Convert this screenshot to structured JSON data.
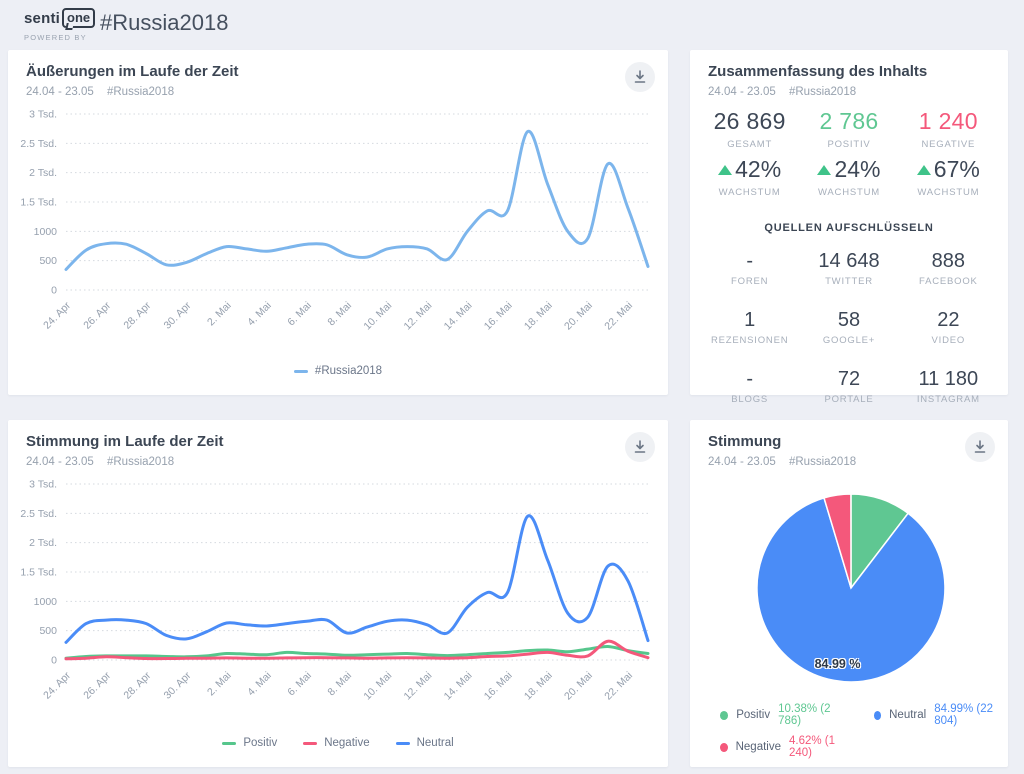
{
  "header": {
    "logo_senti": "senti",
    "logo_one": "one",
    "powered_by": "POWERED BY",
    "title": "#Russia2018"
  },
  "panels": {
    "mentions": {
      "title": "Äußerungen im Laufe der Zeit",
      "date_range": "24.04 - 23.05",
      "hashtag": "#Russia2018",
      "legend": [
        {
          "label": "#Russia2018",
          "color": "#7cb5ec"
        }
      ]
    },
    "summary": {
      "title": "Zusammenfassung des Inhalts",
      "date_range": "24.04 - 23.05",
      "hashtag": "#Russia2018",
      "stats": [
        {
          "value": "26 869",
          "label": "GESAMT",
          "color": "#3d4756"
        },
        {
          "value": "2 786",
          "label": "POSITIV",
          "color": "#5fc792"
        },
        {
          "value": "1 240",
          "label": "NEGATIVE",
          "color": "#f4587b"
        }
      ],
      "growth": [
        {
          "value": "42%",
          "label": "WACHSTUM"
        },
        {
          "value": "24%",
          "label": "WACHSTUM"
        },
        {
          "value": "67%",
          "label": "WACHSTUM"
        }
      ],
      "sources_title": "QUELLEN AUFSCHLÜSSELN",
      "sources": [
        {
          "value": "-",
          "label": "FOREN"
        },
        {
          "value": "14 648",
          "label": "TWITTER"
        },
        {
          "value": "888",
          "label": "FACEBOOK"
        },
        {
          "value": "1",
          "label": "REZENSIONEN"
        },
        {
          "value": "58",
          "label": "GOOGLE+"
        },
        {
          "value": "22",
          "label": "VIDEO"
        },
        {
          "value": "-",
          "label": "BLOGS"
        },
        {
          "value": "72",
          "label": "PORTALE"
        },
        {
          "value": "11 180",
          "label": "INSTAGRAM"
        }
      ]
    },
    "sentiment_time": {
      "title": "Stimmung im Laufe der Zeit",
      "date_range": "24.04 - 23.05",
      "hashtag": "#Russia2018",
      "legend": [
        {
          "label": "Positiv",
          "color": "#56c68c"
        },
        {
          "label": "Negative",
          "color": "#f4587b"
        },
        {
          "label": "Neutral",
          "color": "#4a8cf7"
        }
      ]
    },
    "sentiment_pie": {
      "title": "Stimmung",
      "date_range": "24.04 - 23.05",
      "hashtag": "#Russia2018",
      "inside_label": "84.99 %",
      "legend": [
        {
          "name": "Positiv",
          "value": "10.38% (2 786)",
          "color": "#5fc792"
        },
        {
          "name": "Neutral",
          "value": "84.99% (22 804)",
          "color": "#4a8cf7"
        },
        {
          "name": "Negative",
          "value": "4.62% (1 240)",
          "color": "#f4587b"
        }
      ]
    }
  },
  "chart_data": [
    {
      "type": "line",
      "title": "Äußerungen im Laufe der Zeit",
      "x": [
        "24. Apr",
        "25. Apr",
        "26. Apr",
        "27. Apr",
        "28. Apr",
        "29. Apr",
        "30. Apr",
        "1. Mai",
        "2. Mai",
        "3. Mai",
        "4. Mai",
        "5. Mai",
        "6. Mai",
        "7. Mai",
        "8. Mai",
        "9. Mai",
        "10. Mai",
        "11. Mai",
        "12. Mai",
        "13. Mai",
        "14. Mai",
        "15. Mai",
        "16. Mai",
        "17. Mai",
        "18. Mai",
        "19. Mai",
        "20. Mai",
        "21. Mai",
        "22. Mai",
        "23. Mai"
      ],
      "tick_every": 2,
      "ylim": [
        0,
        3000
      ],
      "y_ticks": [
        {
          "v": 0,
          "label": "0"
        },
        {
          "v": 500,
          "label": "500"
        },
        {
          "v": 1000,
          "label": "1000"
        },
        {
          "v": 1500,
          "label": "1.5 Tsd."
        },
        {
          "v": 2000,
          "label": "2 Tsd."
        },
        {
          "v": 2500,
          "label": "2.5 Tsd."
        },
        {
          "v": 3000,
          "label": "3 Tsd."
        }
      ],
      "grid": "dotted-horizontal",
      "legend_position": "bottom",
      "series": [
        {
          "name": "#Russia2018",
          "color": "#7cb5ec",
          "values": [
            350,
            680,
            790,
            780,
            620,
            430,
            470,
            620,
            740,
            700,
            660,
            720,
            780,
            770,
            600,
            560,
            700,
            740,
            700,
            520,
            1000,
            1350,
            1350,
            2700,
            1800,
            1000,
            880,
            2150,
            1400,
            400
          ]
        }
      ]
    },
    {
      "type": "line",
      "title": "Stimmung im Laufe der Zeit",
      "x": [
        "24. Apr",
        "25. Apr",
        "26. Apr",
        "27. Apr",
        "28. Apr",
        "29. Apr",
        "30. Apr",
        "1. Mai",
        "2. Mai",
        "3. Mai",
        "4. Mai",
        "5. Mai",
        "6. Mai",
        "7. Mai",
        "8. Mai",
        "9. Mai",
        "10. Mai",
        "11. Mai",
        "12. Mai",
        "13. Mai",
        "14. Mai",
        "15. Mai",
        "16. Mai",
        "17. Mai",
        "18. Mai",
        "19. Mai",
        "20. Mai",
        "21. Mai",
        "22. Mai",
        "23. Mai"
      ],
      "tick_every": 2,
      "ylim": [
        0,
        3000
      ],
      "y_ticks": [
        {
          "v": 0,
          "label": "0"
        },
        {
          "v": 500,
          "label": "500"
        },
        {
          "v": 1000,
          "label": "1000"
        },
        {
          "v": 1500,
          "label": "1.5 Tsd."
        },
        {
          "v": 2000,
          "label": "2 Tsd."
        },
        {
          "v": 2500,
          "label": "2.5 Tsd."
        },
        {
          "v": 3000,
          "label": "3 Tsd."
        }
      ],
      "grid": "dotted-horizontal",
      "legend_position": "bottom",
      "series": [
        {
          "name": "Positiv",
          "color": "#56c68c",
          "values": [
            30,
            60,
            70,
            70,
            70,
            60,
            55,
            70,
            110,
            100,
            90,
            130,
            110,
            100,
            80,
            90,
            100,
            110,
            90,
            75,
            90,
            110,
            130,
            160,
            170,
            140,
            185,
            230,
            160,
            110
          ]
        },
        {
          "name": "Negative",
          "color": "#f4587b",
          "values": [
            20,
            30,
            55,
            40,
            25,
            25,
            30,
            30,
            35,
            30,
            30,
            35,
            40,
            40,
            35,
            30,
            35,
            40,
            35,
            30,
            40,
            60,
            70,
            100,
            130,
            80,
            70,
            320,
            150,
            40
          ]
        },
        {
          "name": "Neutral",
          "color": "#4a8cf7",
          "values": [
            300,
            620,
            680,
            680,
            620,
            420,
            360,
            480,
            630,
            600,
            580,
            620,
            660,
            680,
            460,
            560,
            660,
            680,
            600,
            460,
            900,
            1150,
            1150,
            2450,
            1700,
            800,
            730,
            1600,
            1350,
            330
          ]
        }
      ]
    },
    {
      "type": "pie",
      "title": "Stimmung",
      "slices": [
        {
          "name": "Positiv",
          "percent": 10.38,
          "count": 2786,
          "color": "#5fc792"
        },
        {
          "name": "Neutral",
          "percent": 84.99,
          "count": 22804,
          "color": "#4a8cf7"
        },
        {
          "name": "Negative",
          "percent": 4.62,
          "count": 1240,
          "color": "#f4587b"
        }
      ],
      "start_angle_deg": 0,
      "direction": "clockwise",
      "inside_label": "84.99 %"
    }
  ]
}
